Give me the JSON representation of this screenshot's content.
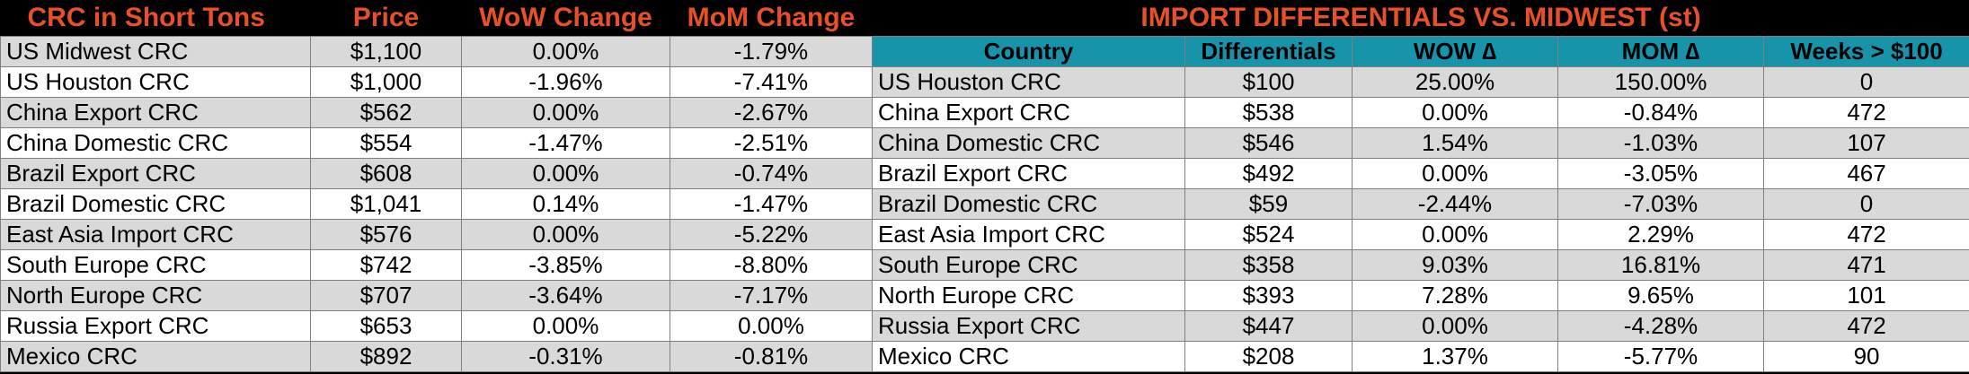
{
  "left_table": {
    "headers": [
      "CRC in Short Tons",
      "Price",
      "WoW Change",
      "MoM Change"
    ],
    "rows": [
      [
        "US Midwest CRC",
        "$1,100",
        "0.00%",
        "-1.79%"
      ],
      [
        "US Houston CRC",
        "$1,000",
        "-1.96%",
        "-7.41%"
      ],
      [
        "China Export CRC",
        "$562",
        "0.00%",
        "-2.67%"
      ],
      [
        "China Domestic CRC",
        "$554",
        "-1.47%",
        "-2.51%"
      ],
      [
        "Brazil Export CRC",
        "$608",
        "0.00%",
        "-0.74%"
      ],
      [
        "Brazil Domestic CRC",
        "$1,041",
        "0.14%",
        "-1.47%"
      ],
      [
        "East Asia Import CRC",
        "$576",
        "0.00%",
        "-5.22%"
      ],
      [
        "South Europe CRC",
        "$742",
        "-3.85%",
        "-8.80%"
      ],
      [
        "North Europe CRC",
        "$707",
        "-3.64%",
        "-7.17%"
      ],
      [
        "Russia Export CRC",
        "$653",
        "0.00%",
        "0.00%"
      ],
      [
        "Mexico CRC",
        "$892",
        "-0.31%",
        "-0.81%"
      ]
    ]
  },
  "right_table": {
    "title": "IMPORT DIFFERENTIALS VS. MIDWEST (st)",
    "headers": [
      "Country",
      "Differentials",
      "WOW ∆",
      "MOM ∆",
      "Weeks > $100"
    ],
    "rows": [
      [
        "US Houston CRC",
        "$100",
        "25.00%",
        "150.00%",
        "0"
      ],
      [
        "China Export CRC",
        "$538",
        "0.00%",
        "-0.84%",
        "472"
      ],
      [
        "China Domestic CRC",
        "$546",
        "1.54%",
        "-1.03%",
        "107"
      ],
      [
        "Brazil Export CRC",
        "$492",
        "0.00%",
        "-3.05%",
        "467"
      ],
      [
        "Brazil Domestic CRC",
        "$59",
        "-2.44%",
        "-7.03%",
        "0"
      ],
      [
        "East Asia Import CRC",
        "$524",
        "0.00%",
        "2.29%",
        "472"
      ],
      [
        "South Europe CRC",
        "$358",
        "9.03%",
        "16.81%",
        "471"
      ],
      [
        "North Europe CRC",
        "$393",
        "7.28%",
        "9.65%",
        "101"
      ],
      [
        "Russia Export CRC",
        "$447",
        "0.00%",
        "-4.28%",
        "472"
      ],
      [
        "Mexico CRC",
        "$208",
        "1.37%",
        "-5.77%",
        "90"
      ]
    ]
  },
  "colors": {
    "title_text": "#e8502a",
    "header_fill": "#1793aa",
    "row_gray": "#d9d9d9",
    "row_white": "#ffffff",
    "background": "#000000"
  }
}
